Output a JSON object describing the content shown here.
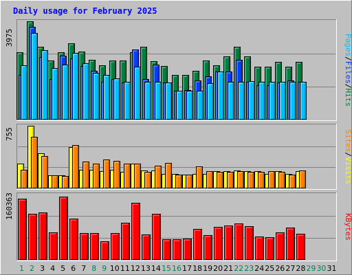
{
  "colors": {
    "frame": "#c0c0c0",
    "panel": "#c0c0c0",
    "title": "#0000ff",
    "hits": "#008040",
    "files": "#0040ff",
    "pages": "#00c0ff",
    "visits": "#ffff00",
    "sites": "#ff8000",
    "kbytes": "#ff0000",
    "weekend_day": "#00805c",
    "weekday": "#000000",
    "separator": "#000000",
    "legend": "#000000"
  },
  "chart_data": {
    "type": "bar",
    "title": "Daily usage for February 2025",
    "x": {
      "categories": [
        "1",
        "2",
        "3",
        "4",
        "5",
        "6",
        "7",
        "8",
        "9",
        "10",
        "11",
        "12",
        "13",
        "14",
        "15",
        "16",
        "17",
        "18",
        "19",
        "20",
        "21",
        "22",
        "23",
        "24",
        "25",
        "26",
        "27",
        "28",
        "29",
        "30",
        "31"
      ],
      "weekend": [
        1,
        2,
        8,
        9,
        15,
        16,
        22,
        23,
        29,
        30
      ]
    },
    "panels": [
      {
        "id": "hits-files-pages",
        "ymax_label": "3975",
        "ymax": 3975,
        "legend": [
          "Pages",
          "/",
          "Files",
          "/",
          "Hits"
        ],
        "legend_colors": [
          "pages",
          "separator",
          "files",
          "separator",
          "hits"
        ],
        "series": [
          {
            "name": "Hits",
            "color": "hits",
            "values": [
              2720,
              3975,
              2950,
              2390,
              2720,
              3090,
              2740,
              2410,
              2190,
              2390,
              2390,
              2720,
              2930,
              2340,
              2160,
              1800,
              1800,
              1960,
              2390,
              2190,
              2560,
              2950,
              2560,
              2140,
              2140,
              2330,
              2140,
              2330
            ]
          },
          {
            "name": "Files",
            "color": "files",
            "values": [
              1800,
              3750,
              2520,
              1630,
              2580,
              2460,
              2160,
              1960,
              1500,
              1630,
              1480,
              2830,
              1630,
              2220,
              1480,
              1150,
              1180,
              1560,
              1730,
              1940,
              1930,
              2400,
              1520,
              1380,
              1380,
              1480,
              1560,
              1520
            ]
          },
          {
            "name": "Pages",
            "color": "pages",
            "values": [
              2190,
              3500,
              2810,
              2080,
              2220,
              2680,
              2260,
              1870,
              1800,
              1660,
              1510,
              2140,
              1510,
              1500,
              1480,
              1150,
              1150,
              1150,
              1460,
              1940,
              1510,
              1500,
              1550,
              1500,
              1510,
              1500,
              1500,
              1510
            ]
          }
        ]
      },
      {
        "id": "visits-sites",
        "ymax_label": "755",
        "ymax": 755,
        "legend": [
          "Sites",
          "/",
          "Visits"
        ],
        "legend_colors": [
          "sites",
          "separator",
          "visits"
        ],
        "series": [
          {
            "name": "Visits",
            "color": "visits",
            "values": [
              290,
              755,
              420,
              150,
              150,
              495,
              220,
              220,
              200,
              220,
              190,
              290,
              210,
              210,
              165,
              170,
              160,
              170,
              165,
              200,
              200,
              210,
              200,
              200,
              165,
              200,
              165,
              200
            ]
          },
          {
            "name": "Sites",
            "color": "sites",
            "values": [
              220,
              620,
              390,
              150,
              140,
              520,
              320,
              290,
              340,
              330,
              290,
              290,
              190,
              270,
              300,
              160,
              160,
              260,
              200,
              190,
              190,
              200,
              190,
              190,
              200,
              190,
              160,
              210
            ]
          }
        ]
      },
      {
        "id": "kbytes",
        "ymax_label": "160363",
        "ymax": 160363,
        "legend": [
          "KBytes"
        ],
        "legend_colors": [
          "kbytes"
        ],
        "series": [
          {
            "name": "KBytes",
            "color": "kbytes",
            "values": [
              150000,
              113000,
              116000,
              67000,
              156000,
              100000,
              64000,
              64000,
              44000,
              65000,
              90000,
              140000,
              61000,
              112000,
              50000,
              49000,
              51000,
              75000,
              60000,
              81000,
              83000,
              88000,
              82000,
              57000,
              54000,
              66000,
              79000,
              63000
            ]
          }
        ]
      }
    ]
  }
}
